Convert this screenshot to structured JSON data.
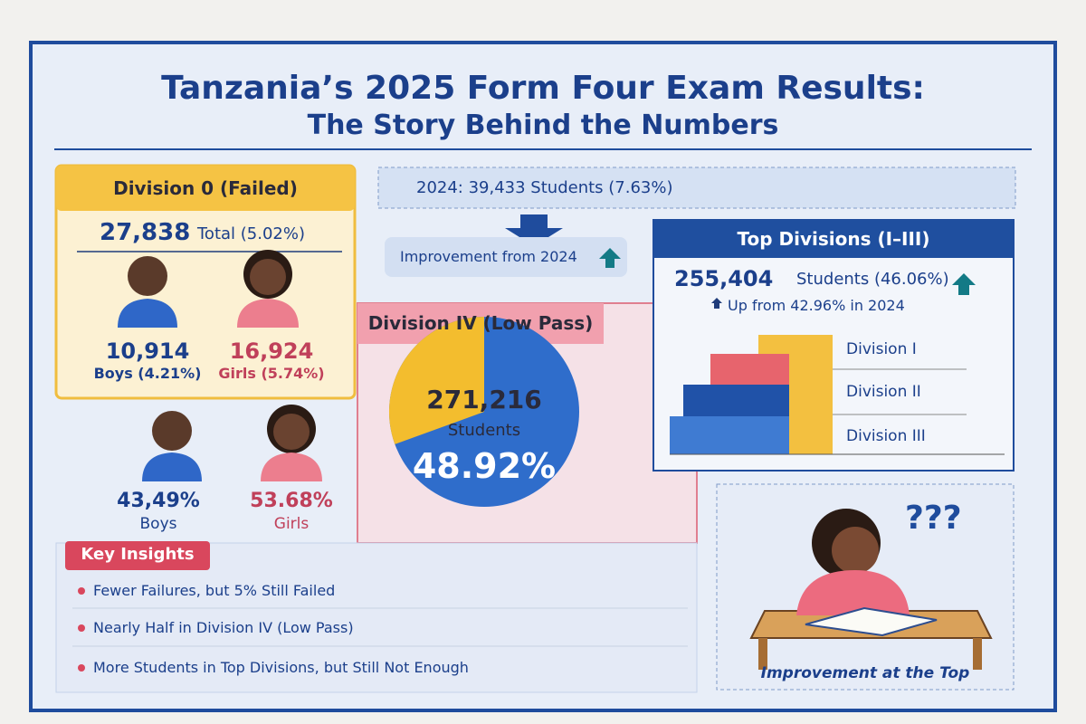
{
  "header": {
    "title": "Tanzania’s 2025 Form Four Exam Results:",
    "subtitle": "The Story Behind the Numbers"
  },
  "division_0": {
    "heading": "Division 0 (Failed)",
    "total": "27,838",
    "total_note": "Total (5.02%)",
    "boys_value": "10,914",
    "boys_label": "Boys (4.21%)",
    "girls_value": "16,924",
    "girls_label": "Girls (5.74%)"
  },
  "gender_share": {
    "boys_value": "43,49%",
    "boys_label": "Boys",
    "girls_value": "53.68%",
    "girls_label": "Girls"
  },
  "comparison": {
    "previous": "2024: 39,433 Students (7.63%)",
    "improvement": "Improvement from 2024"
  },
  "division_4": {
    "heading": "Division IV (Low Pass)",
    "count": "271,216",
    "unit": "Students",
    "percent": "48.92%"
  },
  "top_divisions": {
    "heading": "Top Divisions (I–III)",
    "count": "255,404",
    "count_note": "Students (46.06%)",
    "change": "Up from 42.96% in 2024",
    "levels": [
      "Division I",
      "Division II",
      "Division III"
    ]
  },
  "insights": {
    "heading": "Key Insights",
    "items": [
      "Fewer Failures, but 5% Still Failed",
      "Nearly Half in Division IV (Low Pass)",
      "More Students in Top Divisions, but Still Not Enough"
    ]
  },
  "illustration": {
    "marks": "???",
    "caption": "Improvement at the Top"
  }
}
